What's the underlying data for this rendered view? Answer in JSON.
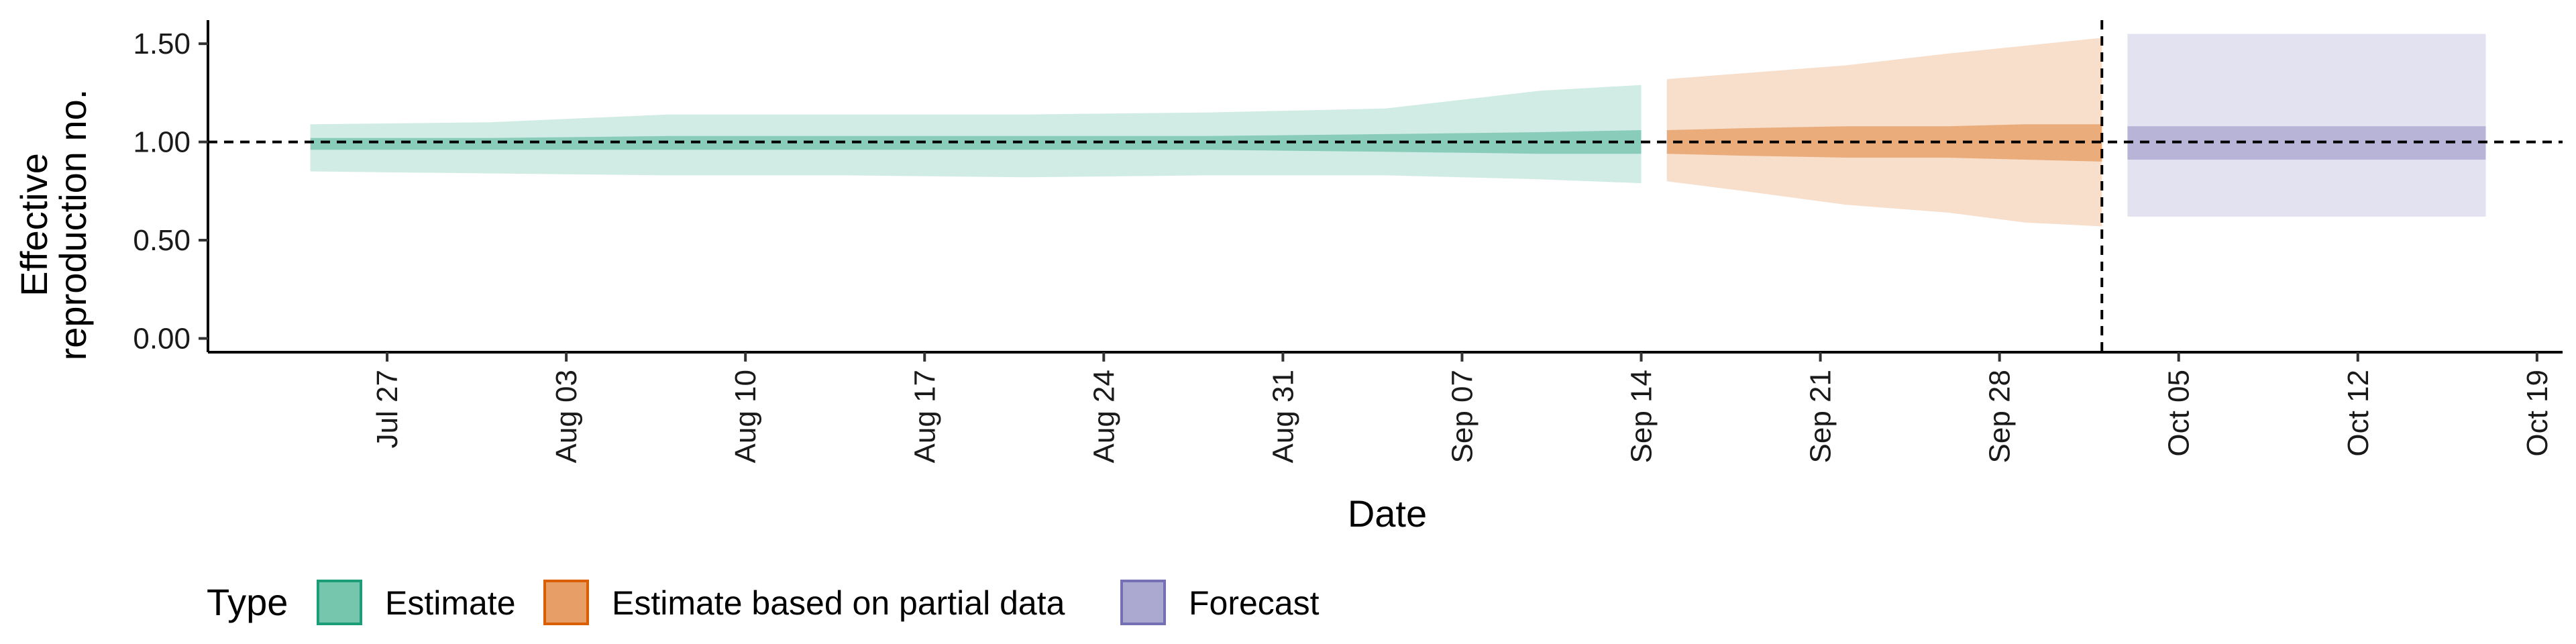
{
  "chart_data": {
    "type": "area",
    "xlabel": "Date",
    "ylabel_lines": [
      "Effective",
      "reproduction no."
    ],
    "x_ticks": [
      "Jul 27",
      "Aug 03",
      "Aug 10",
      "Aug 17",
      "Aug 24",
      "Aug 31",
      "Sep 07",
      "Sep 14",
      "Sep 21",
      "Sep 28",
      "Oct 05",
      "Oct 12",
      "Oct 19"
    ],
    "x_range": [
      "2020-07-20",
      "2020-10-20"
    ],
    "y_ticks": [
      "0.00",
      "0.50",
      "1.00",
      "1.50"
    ],
    "ylim": [
      -0.07,
      1.62
    ],
    "reference_hline": 1.0,
    "reference_vline": "2020-10-02",
    "legend": {
      "title": "Type",
      "position": "bottom-left",
      "items": [
        "Estimate",
        "Estimate based on partial data",
        "Forecast"
      ]
    },
    "colors": {
      "Estimate": "#1B9E77",
      "Estimate based on partial data": "#D95F02",
      "Forecast": "#7570B3"
    },
    "series": [
      {
        "name": "Estimate",
        "x": [
          "2020-07-24",
          "2020-07-31",
          "2020-08-07",
          "2020-08-14",
          "2020-08-21",
          "2020-08-28",
          "2020-09-04",
          "2020-09-10",
          "2020-09-14"
        ],
        "outer_upper": [
          1.09,
          1.1,
          1.14,
          1.14,
          1.14,
          1.15,
          1.17,
          1.26,
          1.29
        ],
        "outer_lower": [
          0.85,
          0.84,
          0.83,
          0.83,
          0.82,
          0.83,
          0.83,
          0.81,
          0.79
        ],
        "inner_upper": [
          1.02,
          1.02,
          1.03,
          1.03,
          1.03,
          1.03,
          1.04,
          1.05,
          1.06
        ],
        "inner_lower": [
          0.96,
          0.96,
          0.96,
          0.96,
          0.96,
          0.96,
          0.95,
          0.94,
          0.94
        ],
        "median": [
          0.99,
          0.99,
          0.99,
          0.99,
          0.99,
          0.99,
          0.99,
          0.99,
          0.99
        ]
      },
      {
        "name": "Estimate based on partial data",
        "x": [
          "2020-09-15",
          "2020-09-18",
          "2020-09-22",
          "2020-09-26",
          "2020-09-29",
          "2020-10-02"
        ],
        "outer_upper": [
          1.32,
          1.35,
          1.39,
          1.45,
          1.49,
          1.53
        ],
        "outer_lower": [
          0.8,
          0.75,
          0.68,
          0.64,
          0.59,
          0.57
        ],
        "inner_upper": [
          1.06,
          1.07,
          1.08,
          1.08,
          1.09,
          1.09
        ],
        "inner_lower": [
          0.94,
          0.93,
          0.92,
          0.92,
          0.91,
          0.9
        ],
        "median": [
          1.0,
          1.0,
          1.0,
          1.0,
          1.0,
          1.0
        ]
      },
      {
        "name": "Forecast",
        "x": [
          "2020-10-03",
          "2020-10-17"
        ],
        "outer_upper": [
          1.55,
          1.55
        ],
        "outer_lower": [
          0.62,
          0.62
        ],
        "inner_upper": [
          1.08,
          1.08
        ],
        "inner_lower": [
          0.91,
          0.91
        ],
        "median": [
          1.0,
          1.0
        ]
      }
    ]
  }
}
